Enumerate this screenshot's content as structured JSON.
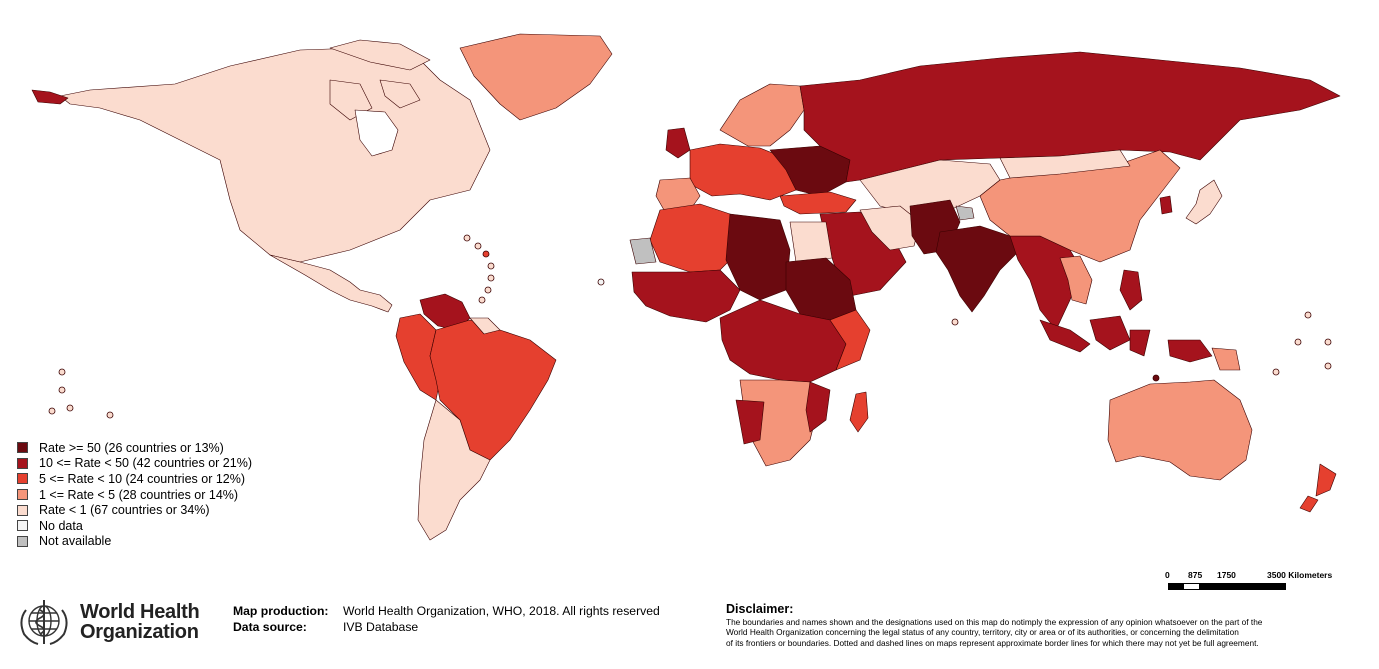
{
  "colors": {
    "rate_50": "#6b0a10",
    "rate_10_50": "#a5131d",
    "rate_5_10": "#e5402f",
    "rate_1_5": "#f4957a",
    "rate_lt1": "#fbdccf",
    "no_data": "#f4f4f4",
    "not_available": "#c0c0c0",
    "outline": "#3a0000"
  },
  "legend": [
    {
      "label": "Rate >= 50 (26 countries or 13%)",
      "color": "#6b0a10"
    },
    {
      "label": "10 <= Rate < 50 (42 countries or 21%)",
      "color": "#a5131d"
    },
    {
      "label": "5 <= Rate < 10 (24 countries or 12%)",
      "color": "#e5402f"
    },
    {
      "label": "1 <= Rate < 5 (28 countries or 14%)",
      "color": "#f4957a"
    },
    {
      "label": "Rate < 1 (67 countries or 34%)",
      "color": "#fbdccf"
    },
    {
      "label": "No data",
      "color": "#f4f4f4"
    },
    {
      "label": "Not available",
      "color": "#c0c0c0"
    }
  ],
  "scalebar": {
    "ticks": [
      "0",
      "875",
      "1750",
      "3500 Kilometers"
    ]
  },
  "logo": {
    "line1": "World Health",
    "line2": "Organization"
  },
  "credits": {
    "production_label": "Map production:",
    "production_value": "World Health Organization, WHO, 2018. All rights reserved",
    "source_label": "Data source:",
    "source_value": "IVB Database"
  },
  "disclaimer": {
    "title": "Disclaimer:",
    "line1": "The boundaries and names shown and the designations used on this map do notimply the expression of any opinion whatsoever on the part of the",
    "line2": "World Health Organization concerning the legal status of any country, territory, city or area or of its authorities, or concerning the delimitation",
    "line3": "of its frontiers or boundaries. Dotted and dashed lines on maps represent approximate border lines for which there may not yet be full agreement."
  }
}
